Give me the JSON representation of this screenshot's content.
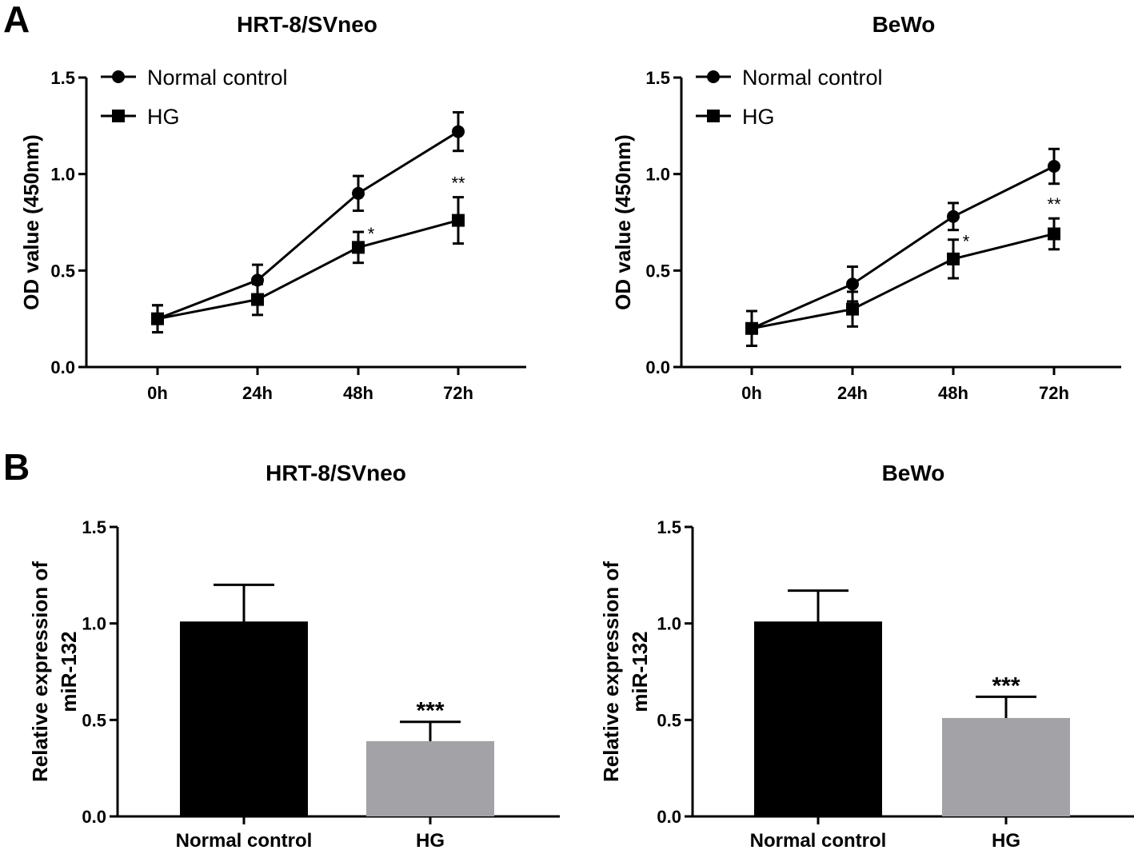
{
  "panels": {
    "a": "A",
    "b": "B"
  },
  "colors": {
    "black": "#000000",
    "hg_bar": "#a2a2a7"
  },
  "chart_data": [
    {
      "type": "line",
      "title": "HRT-8/SVneo",
      "xlabel": "",
      "ylabel": "OD value (450nm)",
      "categories": [
        "0h",
        "24h",
        "48h",
        "72h"
      ],
      "ylim": [
        0,
        1.5
      ],
      "yticks": [
        "0.0",
        "0.5",
        "1.0",
        "1.5"
      ],
      "legend": "top-left",
      "series": [
        {
          "name": "Normal control",
          "marker": "circle",
          "values": [
            0.25,
            0.45,
            0.9,
            1.22
          ],
          "errors": [
            0.07,
            0.08,
            0.09,
            0.1
          ]
        },
        {
          "name": "HG",
          "marker": "square",
          "values": [
            0.25,
            0.35,
            0.62,
            0.76
          ],
          "errors": [
            0.07,
            0.08,
            0.08,
            0.12
          ]
        }
      ],
      "annotations": [
        {
          "category": "48h",
          "series": "HG",
          "text": "*"
        },
        {
          "category": "72h",
          "series": "HG",
          "text": "**"
        }
      ]
    },
    {
      "type": "line",
      "title": "BeWo",
      "xlabel": "",
      "ylabel": "OD value (450nm)",
      "categories": [
        "0h",
        "24h",
        "48h",
        "72h"
      ],
      "ylim": [
        0,
        1.5
      ],
      "yticks": [
        "0.0",
        "0.5",
        "1.0",
        "1.5"
      ],
      "legend": "top-left",
      "series": [
        {
          "name": "Normal control",
          "marker": "circle",
          "values": [
            0.2,
            0.43,
            0.78,
            1.04
          ],
          "errors": [
            0.09,
            0.09,
            0.07,
            0.09
          ]
        },
        {
          "name": "HG",
          "marker": "square",
          "values": [
            0.2,
            0.3,
            0.56,
            0.69
          ],
          "errors": [
            0.09,
            0.09,
            0.1,
            0.08
          ]
        }
      ],
      "annotations": [
        {
          "category": "48h",
          "series": "HG",
          "text": "*"
        },
        {
          "category": "72h",
          "series": "HG",
          "text": "**"
        }
      ]
    },
    {
      "type": "bar",
      "title": "HRT-8/SVneo",
      "xlabel": "",
      "ylabel": "Relative expression of miR-132",
      "ylabel_lines": [
        "Relative expression of",
        "miR-132"
      ],
      "categories": [
        "Normal control",
        "HG"
      ],
      "values": [
        1.01,
        0.39
      ],
      "errors": [
        0.19,
        0.1
      ],
      "ylim": [
        0,
        1.5
      ],
      "yticks": [
        "0.0",
        "0.5",
        "1.0",
        "1.5"
      ],
      "annotations": [
        {
          "category": "HG",
          "text": "***"
        }
      ]
    },
    {
      "type": "bar",
      "title": "BeWo",
      "xlabel": "",
      "ylabel": "Relative expression of miR-132",
      "ylabel_lines": [
        "Relative expression of",
        "miR-132"
      ],
      "categories": [
        "Normal control",
        "HG"
      ],
      "values": [
        1.01,
        0.51
      ],
      "errors": [
        0.16,
        0.11
      ],
      "ylim": [
        0,
        1.5
      ],
      "yticks": [
        "0.0",
        "0.5",
        "1.0",
        "1.5"
      ],
      "annotations": [
        {
          "category": "HG",
          "text": "***"
        }
      ]
    }
  ]
}
